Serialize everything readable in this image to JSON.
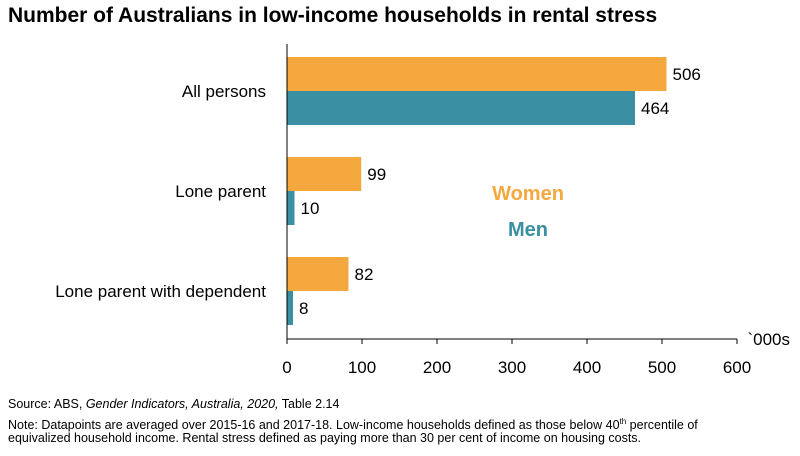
{
  "chart_data": {
    "type": "bar",
    "orientation": "horizontal",
    "title": "Number of Australians in low-income households in rental stress",
    "categories": [
      "All persons",
      "Lone parent",
      "Lone parent with dependent"
    ],
    "series": [
      {
        "name": "Women",
        "values": [
          506,
          99,
          82
        ],
        "color": "#F4A83D"
      },
      {
        "name": "Men",
        "values": [
          464,
          10,
          8
        ],
        "color": "#3A8FA3"
      }
    ],
    "xlim": [
      0,
      600
    ],
    "xticks": [
      0,
      100,
      200,
      300,
      400,
      500,
      600
    ],
    "unit_label": "`000s",
    "grid": false,
    "legend_placement": "center-right"
  },
  "footnotes": {
    "source_prefix": "Source: ABS, ",
    "source_italic": "Gender Indicators, Australia, 2020,",
    "source_suffix": " Table 2.14",
    "note_line1_a": "Note: Datapoints are averaged over 2015-16 and 2017-18. Low-income households defined as those below 40",
    "note_sup": "th",
    "note_line1_b": " percentile of",
    "note_line2": "equivalized household income. Rental stress defined as paying more than 30 per cent of income on housing costs."
  }
}
